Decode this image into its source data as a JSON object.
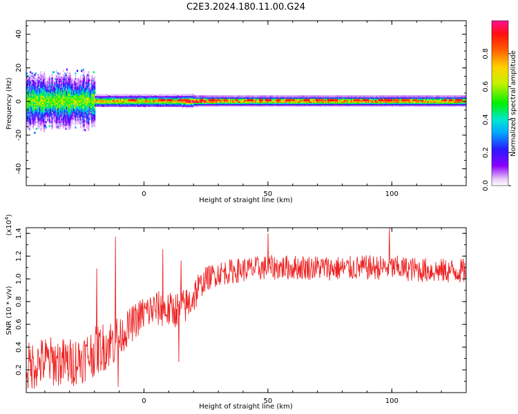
{
  "chart_data": [
    {
      "type": "heatmap",
      "title": "C2E3.2024.180.11.00.G24",
      "xlabel": "Height of straight line (km)",
      "ylabel": "Frequency (Hz)",
      "xlim": [
        -47.5,
        130
      ],
      "ylim": [
        -50,
        48
      ],
      "xticks": [
        0,
        50,
        100
      ],
      "yticks": [
        -40,
        -20,
        0,
        20,
        40
      ],
      "colorbar": {
        "label": "Normalized spectral amplitude",
        "range": [
          0,
          1
        ],
        "ticks": [
          0.0,
          0.2,
          0.4,
          0.6,
          0.8
        ],
        "colormap": "rainbow"
      },
      "band": {
        "center_hz": 0.5,
        "features": [
          {
            "x_range": [
              -47.5,
              -20
            ],
            "description_level": 0.6
          },
          {
            "x_range": [
              -20,
              15
            ],
            "description_level": 0.75
          },
          {
            "x_range": [
              15,
              25
            ],
            "description_level": 0.95
          },
          {
            "x_range": [
              25,
              130
            ],
            "description_level": 0.8
          }
        ]
      }
    },
    {
      "type": "line",
      "xlabel": "Height of straight line (km)",
      "ylabel": "SNR (10 * v/v)",
      "yscale_label": "(x10",
      "yscale_exp": "4",
      "yscale_close": ")",
      "xlim": [
        -47.5,
        130
      ],
      "ylim": [
        0.0,
        1.45
      ],
      "xticks": [
        0,
        50,
        100
      ],
      "yticks": [
        0.2,
        0.4,
        0.6,
        0.8,
        1.0,
        1.2,
        1.4
      ],
      "color": "#ee2222",
      "trend": {
        "x": [
          -47.5,
          -40,
          -30,
          -25,
          -20,
          -15,
          -10,
          -5,
          0,
          5,
          10,
          15,
          18,
          22,
          25,
          30,
          40,
          50,
          60,
          70,
          80,
          90,
          100,
          110,
          120,
          130
        ],
        "y": [
          0.22,
          0.28,
          0.26,
          0.3,
          0.36,
          0.42,
          0.48,
          0.6,
          0.7,
          0.74,
          0.72,
          0.74,
          0.78,
          0.92,
          1.0,
          1.05,
          1.08,
          1.1,
          1.1,
          1.1,
          1.09,
          1.1,
          1.1,
          1.08,
          1.07,
          1.07
        ]
      },
      "spikes": [
        {
          "x": -11.5,
          "y": 1.37
        },
        {
          "x": -19,
          "y": 1.09
        },
        {
          "x": 7.5,
          "y": 1.26
        },
        {
          "x": 15,
          "y": 1.16
        },
        {
          "x": 50,
          "y": 1.4
        },
        {
          "x": 99,
          "y": 1.45
        },
        {
          "x": 14,
          "y": 0.27
        },
        {
          "x": -10.5,
          "y": 0.05
        }
      ]
    }
  ]
}
